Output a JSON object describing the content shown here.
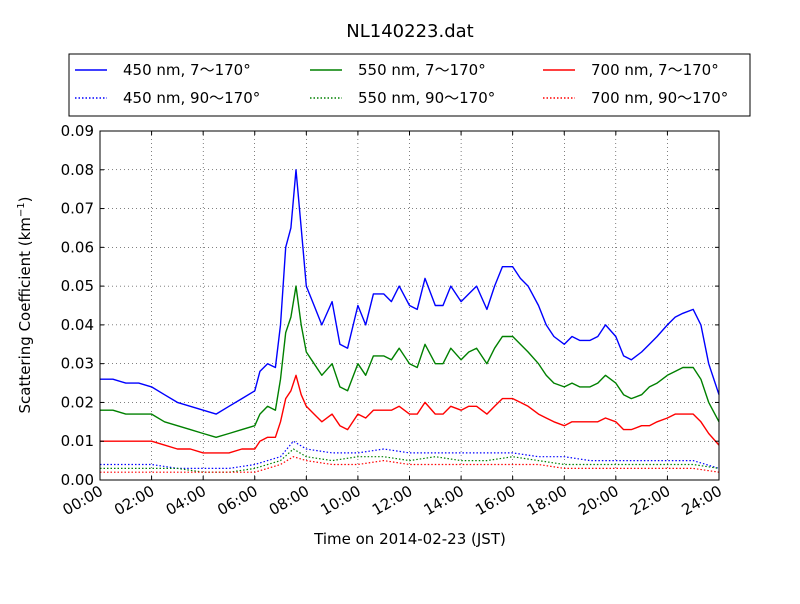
{
  "chart_data": {
    "type": "line",
    "title": "NL140223.dat",
    "xlabel": "Time on 2014-02-23 (JST)",
    "ylabel": "Scattering Coefficient (km",
    "ylabel_sup": "−1",
    "ylabel_end": ")",
    "xlim": [
      0,
      24
    ],
    "ylim": [
      0,
      0.09
    ],
    "grid": true,
    "legend_position": "top",
    "x_ticks": [
      0,
      2,
      4,
      6,
      8,
      10,
      12,
      14,
      16,
      18,
      20,
      22,
      24
    ],
    "x_tick_labels": [
      "00:00",
      "02:00",
      "04:00",
      "06:00",
      "08:00",
      "10:00",
      "12:00",
      "14:00",
      "16:00",
      "18:00",
      "20:00",
      "22:00",
      "24:00"
    ],
    "y_ticks": [
      0,
      0.01,
      0.02,
      0.03,
      0.04,
      0.05,
      0.06,
      0.07,
      0.08,
      0.09
    ],
    "y_tick_labels": [
      "0.00",
      "0.01",
      "0.02",
      "0.03",
      "0.04",
      "0.05",
      "0.06",
      "0.07",
      "0.08",
      "0.09"
    ],
    "x_units": "hours",
    "series": [
      {
        "name": "450 nm, 7～170°",
        "color": "#0000ff",
        "style": "solid",
        "x": [
          0,
          0.5,
          1,
          1.5,
          2,
          2.5,
          3,
          3.5,
          4,
          4.5,
          5,
          5.5,
          6,
          6.2,
          6.5,
          6.8,
          7,
          7.2,
          7.4,
          7.6,
          7.8,
          8,
          8.3,
          8.6,
          9,
          9.3,
          9.6,
          10,
          10.3,
          10.6,
          11,
          11.3,
          11.6,
          12,
          12.3,
          12.6,
          13,
          13.3,
          13.6,
          14,
          14.3,
          14.6,
          15,
          15.3,
          15.6,
          16,
          16.3,
          16.6,
          17,
          17.3,
          17.6,
          18,
          18.3,
          18.6,
          19,
          19.3,
          19.6,
          20,
          20.3,
          20.6,
          21,
          21.3,
          21.6,
          22,
          22.3,
          22.6,
          23,
          23.3,
          23.6,
          24
        ],
        "y": [
          0.026,
          0.026,
          0.025,
          0.025,
          0.024,
          0.022,
          0.02,
          0.019,
          0.018,
          0.017,
          0.019,
          0.021,
          0.023,
          0.028,
          0.03,
          0.029,
          0.04,
          0.06,
          0.065,
          0.08,
          0.065,
          0.05,
          0.045,
          0.04,
          0.046,
          0.035,
          0.034,
          0.045,
          0.04,
          0.048,
          0.048,
          0.046,
          0.05,
          0.045,
          0.044,
          0.052,
          0.045,
          0.045,
          0.05,
          0.046,
          0.048,
          0.05,
          0.044,
          0.05,
          0.055,
          0.055,
          0.052,
          0.05,
          0.045,
          0.04,
          0.037,
          0.035,
          0.037,
          0.036,
          0.036,
          0.037,
          0.04,
          0.037,
          0.032,
          0.031,
          0.033,
          0.035,
          0.037,
          0.04,
          0.042,
          0.043,
          0.044,
          0.04,
          0.03,
          0.022
        ]
      },
      {
        "name": "550 nm, 7～170°",
        "color": "#008000",
        "style": "solid",
        "x": [
          0,
          0.5,
          1,
          1.5,
          2,
          2.5,
          3,
          3.5,
          4,
          4.5,
          5,
          5.5,
          6,
          6.2,
          6.5,
          6.8,
          7,
          7.2,
          7.4,
          7.6,
          7.8,
          8,
          8.3,
          8.6,
          9,
          9.3,
          9.6,
          10,
          10.3,
          10.6,
          11,
          11.3,
          11.6,
          12,
          12.3,
          12.6,
          13,
          13.3,
          13.6,
          14,
          14.3,
          14.6,
          15,
          15.3,
          15.6,
          16,
          16.3,
          16.6,
          17,
          17.3,
          17.6,
          18,
          18.3,
          18.6,
          19,
          19.3,
          19.6,
          20,
          20.3,
          20.6,
          21,
          21.3,
          21.6,
          22,
          22.3,
          22.6,
          23,
          23.3,
          23.6,
          24
        ],
        "y": [
          0.018,
          0.018,
          0.017,
          0.017,
          0.017,
          0.015,
          0.014,
          0.013,
          0.012,
          0.011,
          0.012,
          0.013,
          0.014,
          0.017,
          0.019,
          0.018,
          0.026,
          0.038,
          0.042,
          0.05,
          0.04,
          0.033,
          0.03,
          0.027,
          0.03,
          0.024,
          0.023,
          0.03,
          0.027,
          0.032,
          0.032,
          0.031,
          0.034,
          0.03,
          0.029,
          0.035,
          0.03,
          0.03,
          0.034,
          0.031,
          0.033,
          0.034,
          0.03,
          0.034,
          0.037,
          0.037,
          0.035,
          0.033,
          0.03,
          0.027,
          0.025,
          0.024,
          0.025,
          0.024,
          0.024,
          0.025,
          0.027,
          0.025,
          0.022,
          0.021,
          0.022,
          0.024,
          0.025,
          0.027,
          0.028,
          0.029,
          0.029,
          0.026,
          0.02,
          0.015
        ]
      },
      {
        "name": "700 nm, 7～170°",
        "color": "#ff0000",
        "style": "solid",
        "x": [
          0,
          0.5,
          1,
          1.5,
          2,
          2.5,
          3,
          3.5,
          4,
          4.5,
          5,
          5.5,
          6,
          6.2,
          6.5,
          6.8,
          7,
          7.2,
          7.4,
          7.6,
          7.8,
          8,
          8.3,
          8.6,
          9,
          9.3,
          9.6,
          10,
          10.3,
          10.6,
          11,
          11.3,
          11.6,
          12,
          12.3,
          12.6,
          13,
          13.3,
          13.6,
          14,
          14.3,
          14.6,
          15,
          15.3,
          15.6,
          16,
          16.3,
          16.6,
          17,
          17.3,
          17.6,
          18,
          18.3,
          18.6,
          19,
          19.3,
          19.6,
          20,
          20.3,
          20.6,
          21,
          21.3,
          21.6,
          22,
          22.3,
          22.6,
          23,
          23.3,
          23.6,
          24
        ],
        "y": [
          0.01,
          0.01,
          0.01,
          0.01,
          0.01,
          0.009,
          0.008,
          0.008,
          0.007,
          0.007,
          0.007,
          0.008,
          0.008,
          0.01,
          0.011,
          0.011,
          0.015,
          0.021,
          0.023,
          0.027,
          0.022,
          0.019,
          0.017,
          0.015,
          0.017,
          0.014,
          0.013,
          0.017,
          0.016,
          0.018,
          0.018,
          0.018,
          0.019,
          0.017,
          0.017,
          0.02,
          0.017,
          0.017,
          0.019,
          0.018,
          0.019,
          0.019,
          0.017,
          0.019,
          0.021,
          0.021,
          0.02,
          0.019,
          0.017,
          0.016,
          0.015,
          0.014,
          0.015,
          0.015,
          0.015,
          0.015,
          0.016,
          0.015,
          0.013,
          0.013,
          0.014,
          0.014,
          0.015,
          0.016,
          0.017,
          0.017,
          0.017,
          0.015,
          0.012,
          0.009
        ]
      },
      {
        "name": "450 nm, 90～170°",
        "color": "#0000ff",
        "style": "dotted",
        "x": [
          0,
          1,
          2,
          3,
          4,
          5,
          6,
          6.5,
          7,
          7.5,
          8,
          9,
          10,
          11,
          12,
          13,
          14,
          15,
          16,
          17,
          18,
          19,
          20,
          21,
          22,
          23,
          24
        ],
        "y": [
          0.004,
          0.004,
          0.004,
          0.003,
          0.003,
          0.003,
          0.004,
          0.005,
          0.006,
          0.01,
          0.008,
          0.007,
          0.007,
          0.008,
          0.007,
          0.007,
          0.007,
          0.007,
          0.007,
          0.006,
          0.006,
          0.005,
          0.005,
          0.005,
          0.005,
          0.005,
          0.003
        ]
      },
      {
        "name": "550 nm, 90～170°",
        "color": "#008000",
        "style": "dotted",
        "x": [
          0,
          1,
          2,
          3,
          4,
          5,
          6,
          6.5,
          7,
          7.5,
          8,
          9,
          10,
          11,
          12,
          13,
          14,
          15,
          16,
          17,
          18,
          19,
          20,
          21,
          22,
          23,
          24
        ],
        "y": [
          0.003,
          0.003,
          0.003,
          0.003,
          0.002,
          0.002,
          0.003,
          0.004,
          0.005,
          0.008,
          0.006,
          0.005,
          0.006,
          0.006,
          0.005,
          0.006,
          0.005,
          0.005,
          0.006,
          0.005,
          0.004,
          0.004,
          0.004,
          0.004,
          0.004,
          0.004,
          0.003
        ]
      },
      {
        "name": "700 nm, 90～170°",
        "color": "#ff0000",
        "style": "dotted",
        "x": [
          0,
          1,
          2,
          3,
          4,
          5,
          6,
          6.5,
          7,
          7.5,
          8,
          9,
          10,
          11,
          12,
          13,
          14,
          15,
          16,
          17,
          18,
          19,
          20,
          21,
          22,
          23,
          24
        ],
        "y": [
          0.002,
          0.002,
          0.002,
          0.002,
          0.002,
          0.002,
          0.002,
          0.003,
          0.004,
          0.006,
          0.005,
          0.004,
          0.004,
          0.005,
          0.004,
          0.004,
          0.004,
          0.004,
          0.004,
          0.004,
          0.003,
          0.003,
          0.003,
          0.003,
          0.003,
          0.003,
          0.002
        ]
      }
    ]
  }
}
